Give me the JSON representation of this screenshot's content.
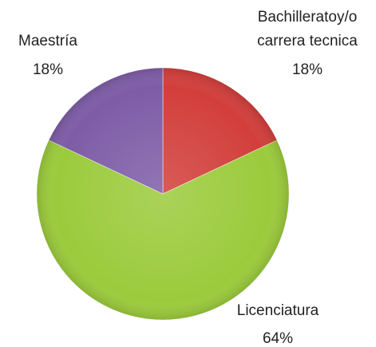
{
  "chart_data": {
    "type": "pie",
    "categories": [
      "Bachilleratoy/o carrera tecnica",
      "Licenciatura",
      "Maestría"
    ],
    "values": [
      18,
      64,
      18
    ],
    "value_labels": [
      "18%",
      "64%",
      "18%"
    ],
    "colors": [
      "#d23f3b",
      "#9bcb3c",
      "#7e5da7"
    ]
  }
}
